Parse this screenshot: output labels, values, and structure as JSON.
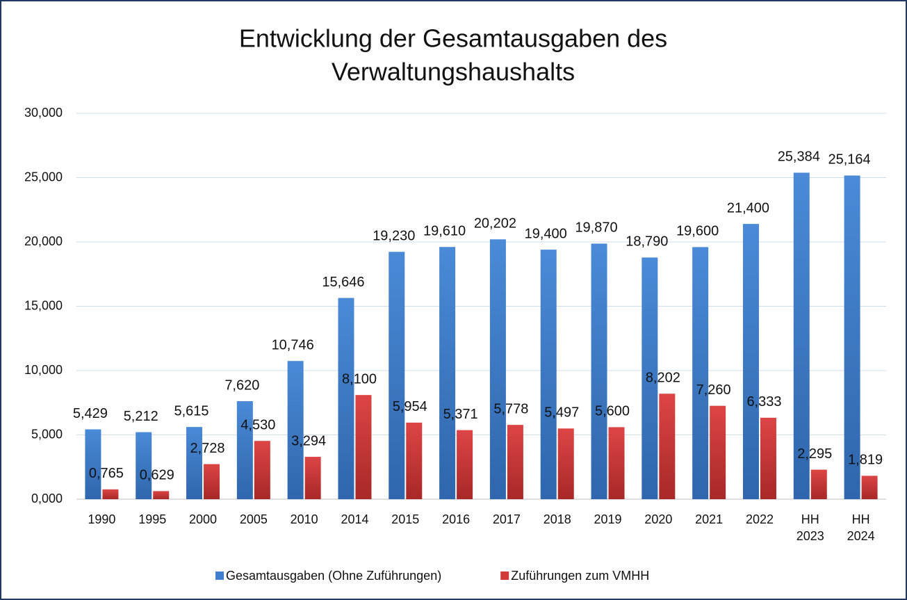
{
  "chart_data": {
    "type": "bar",
    "title": [
      "Entwicklung der Gesamtausgaben des",
      "Verwaltungshaushalts"
    ],
    "categories": [
      "1990",
      "1995",
      "2000",
      "2005",
      "2010",
      "2014",
      "2015",
      "2016",
      "2017",
      "2018",
      "2019",
      "2020",
      "2021",
      "2022",
      "HH 2023",
      "HH 2024"
    ],
    "series": [
      {
        "name": "Gesamtausgaben (Ohne Zuführungen)",
        "color": "#3f7fcc",
        "values": [
          5.429,
          5.212,
          5.615,
          7.62,
          10.746,
          15.646,
          19.23,
          19.61,
          20.202,
          19.4,
          19.87,
          18.79,
          19.6,
          21.4,
          25.384,
          25.164
        ],
        "value_labels": [
          "5,429",
          "5,212",
          "5,615",
          "7,620",
          "10,746",
          "15,646",
          "19,230",
          "19,610",
          "20,202",
          "19,400",
          "19,870",
          "18,790",
          "19,600",
          "21,400",
          "25,384",
          "25,164"
        ]
      },
      {
        "name": "Zuführungen zum VMHH",
        "color": "#d23a3a",
        "values": [
          0.765,
          0.629,
          2.728,
          4.53,
          3.294,
          8.1,
          5.954,
          5.371,
          5.778,
          5.497,
          5.6,
          8.202,
          7.26,
          6.333,
          2.295,
          1.819
        ],
        "value_labels": [
          "0,765",
          "0,629",
          "2,728",
          "4,530",
          "3,294",
          "8,100",
          "5,954",
          "5,371",
          "5,778",
          "5,497",
          "5,600",
          "8,202",
          "7,260",
          "6,333",
          "2,295",
          "1,819"
        ]
      }
    ],
    "ylim": [
      0,
      30
    ],
    "yticks": [
      {
        "value": 0,
        "label": "0,000"
      },
      {
        "value": 5,
        "label": "5,000"
      },
      {
        "value": 10,
        "label": "10,000"
      },
      {
        "value": 15,
        "label": "15,000"
      },
      {
        "value": 20,
        "label": "20,000"
      },
      {
        "value": 25,
        "label": "25,000"
      },
      {
        "value": 30,
        "label": "30,000"
      }
    ],
    "grid": true,
    "legend": "bottom"
  }
}
